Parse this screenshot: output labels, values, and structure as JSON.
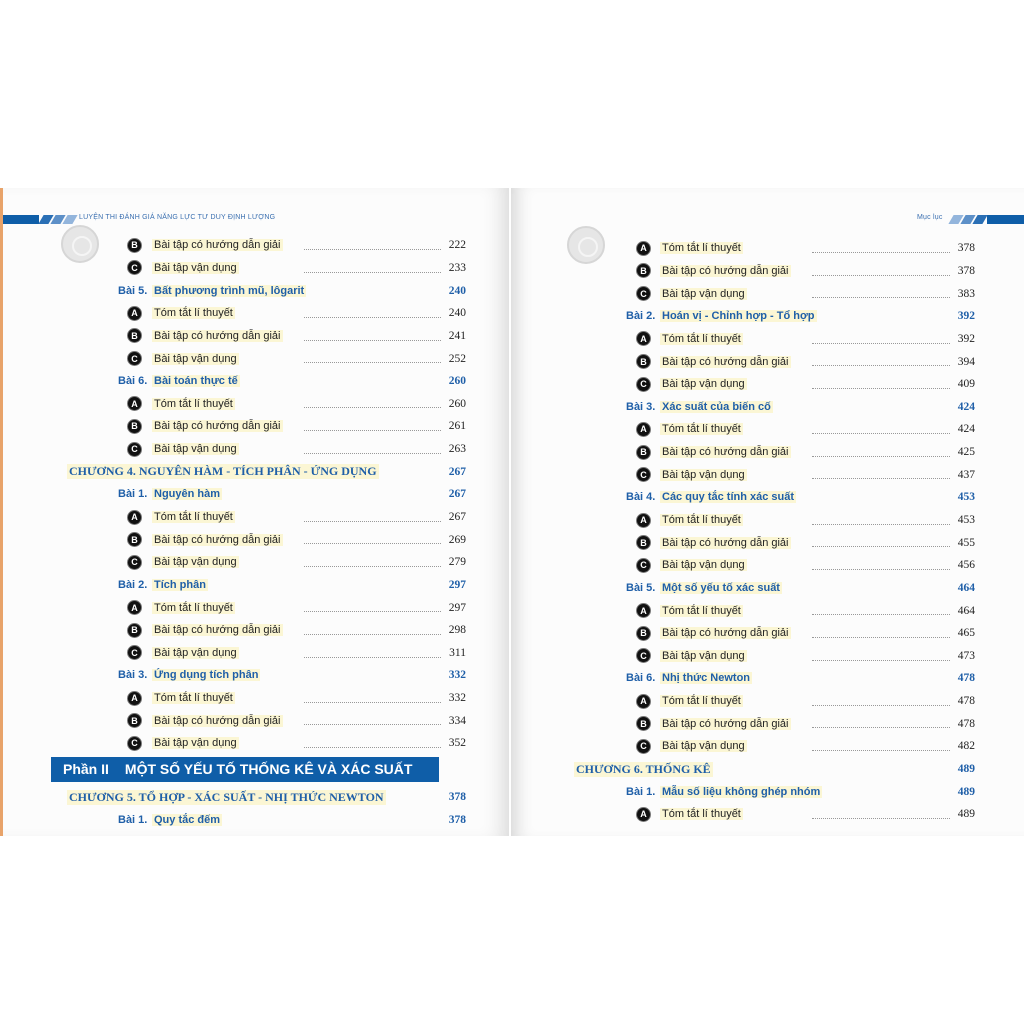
{
  "left_page": {
    "header": "LUYỆN THI ĐÁNH GIÁ NĂNG LỰC TƯ DUY ĐỊNH LƯỢNG",
    "rows": [
      {
        "type": "item",
        "badge": "B",
        "text": "Bài tập có hướng dẫn giải",
        "page": "222"
      },
      {
        "type": "item",
        "badge": "C",
        "text": "Bài tập vận dụng",
        "page": "233"
      },
      {
        "type": "lesson",
        "label": "Bài 5.",
        "text": "Bất phương trình mũ, lôgarit",
        "page": "240"
      },
      {
        "type": "item",
        "badge": "A",
        "text": "Tóm tắt lí thuyết",
        "page": "240"
      },
      {
        "type": "item",
        "badge": "B",
        "text": "Bài tập có hướng dẫn giải",
        "page": "241"
      },
      {
        "type": "item",
        "badge": "C",
        "text": "Bài tập vận dụng",
        "page": "252"
      },
      {
        "type": "lesson",
        "label": "Bài 6.",
        "text": "Bài toán thực tế",
        "page": "260"
      },
      {
        "type": "item",
        "badge": "A",
        "text": "Tóm tắt lí thuyết",
        "page": "260"
      },
      {
        "type": "item",
        "badge": "B",
        "text": "Bài tập có hướng dẫn giải",
        "page": "261"
      },
      {
        "type": "item",
        "badge": "C",
        "text": "Bài tập vận dụng",
        "page": "263"
      },
      {
        "type": "chapter",
        "text": "CHƯƠNG 4.  NGUYÊN HÀM - TÍCH PHÂN - ỨNG DỤNG",
        "page": "267"
      },
      {
        "type": "lesson",
        "label": "Bài 1.",
        "text": "Nguyên hàm",
        "page": "267"
      },
      {
        "type": "item",
        "badge": "A",
        "text": "Tóm tắt lí thuyết",
        "page": "267"
      },
      {
        "type": "item",
        "badge": "B",
        "text": "Bài tập có hướng dẫn giải",
        "page": "269"
      },
      {
        "type": "item",
        "badge": "C",
        "text": "Bài tập vận dụng",
        "page": "279"
      },
      {
        "type": "lesson",
        "label": "Bài 2.",
        "text": "Tích phân",
        "page": "297"
      },
      {
        "type": "item",
        "badge": "A",
        "text": "Tóm tắt lí thuyết",
        "page": "297"
      },
      {
        "type": "item",
        "badge": "B",
        "text": "Bài tập có hướng dẫn giải",
        "page": "298"
      },
      {
        "type": "item",
        "badge": "C",
        "text": "Bài tập vận dụng",
        "page": "311"
      },
      {
        "type": "lesson",
        "label": "Bài 3.",
        "text": "Ứng dụng tích phân",
        "page": "332"
      },
      {
        "type": "item",
        "badge": "A",
        "text": "Tóm tắt lí thuyết",
        "page": "332"
      },
      {
        "type": "item",
        "badge": "B",
        "text": "Bài tập có hướng dẫn giải",
        "page": "334"
      },
      {
        "type": "item",
        "badge": "C",
        "text": "Bài tập vận dụng",
        "page": "352"
      },
      {
        "type": "part",
        "label": "Phần  II",
        "text": "MỘT SỐ YẾU TỐ THỐNG KÊ VÀ XÁC SUẤT"
      },
      {
        "type": "chapter",
        "text": "CHƯƠNG 5.  TỔ HỢP - XÁC SUẤT - NHỊ THỨC NEWTON",
        "page": "378"
      },
      {
        "type": "lesson",
        "label": "Bài 1.",
        "text": "Quy tắc đếm",
        "page": "378"
      }
    ]
  },
  "right_page": {
    "header": "Mục lục",
    "rows": [
      {
        "type": "item",
        "badge": "A",
        "text": "Tóm tắt lí thuyết",
        "page": "378"
      },
      {
        "type": "item",
        "badge": "B",
        "text": "Bài tập có hướng dẫn giải",
        "page": "378"
      },
      {
        "type": "item",
        "badge": "C",
        "text": "Bài tập vận dụng",
        "page": "383"
      },
      {
        "type": "lesson",
        "label": "Bài 2.",
        "text": "Hoán vị - Chỉnh hợp - Tổ hợp",
        "page": "392"
      },
      {
        "type": "item",
        "badge": "A",
        "text": "Tóm tắt lí thuyết",
        "page": "392"
      },
      {
        "type": "item",
        "badge": "B",
        "text": "Bài tập có hướng dẫn giải",
        "page": "394"
      },
      {
        "type": "item",
        "badge": "C",
        "text": "Bài tập vận dụng",
        "page": "409"
      },
      {
        "type": "lesson",
        "label": "Bài 3.",
        "text": "Xác suất của biến cố",
        "page": "424"
      },
      {
        "type": "item",
        "badge": "A",
        "text": "Tóm tắt lí thuyết",
        "page": "424"
      },
      {
        "type": "item",
        "badge": "B",
        "text": "Bài tập có hướng dẫn giải",
        "page": "425"
      },
      {
        "type": "item",
        "badge": "C",
        "text": "Bài tập vận dụng",
        "page": "437"
      },
      {
        "type": "lesson",
        "label": "Bài 4.",
        "text": "Các quy tắc tính xác suất",
        "page": "453"
      },
      {
        "type": "item",
        "badge": "A",
        "text": "Tóm tắt lí thuyết",
        "page": "453"
      },
      {
        "type": "item",
        "badge": "B",
        "text": "Bài tập có hướng dẫn giải",
        "page": "455"
      },
      {
        "type": "item",
        "badge": "C",
        "text": "Bài tập vận dụng",
        "page": "456"
      },
      {
        "type": "lesson",
        "label": "Bài 5.",
        "text": "Một số yếu tố xác suất",
        "page": "464"
      },
      {
        "type": "item",
        "badge": "A",
        "text": "Tóm tắt lí thuyết",
        "page": "464"
      },
      {
        "type": "item",
        "badge": "B",
        "text": "Bài tập có hướng dẫn giải",
        "page": "465"
      },
      {
        "type": "item",
        "badge": "C",
        "text": "Bài tập vận dụng",
        "page": "473"
      },
      {
        "type": "lesson",
        "label": "Bài 6.",
        "text": "Nhị thức Newton",
        "page": "478"
      },
      {
        "type": "item",
        "badge": "A",
        "text": "Tóm tắt lí thuyết",
        "page": "478"
      },
      {
        "type": "item",
        "badge": "B",
        "text": "Bài tập có hướng dẫn giải",
        "page": "478"
      },
      {
        "type": "item",
        "badge": "C",
        "text": "Bài tập vận dụng",
        "page": "482"
      },
      {
        "type": "chapter",
        "text": "CHƯƠNG 6.  THỐNG KÊ",
        "page": "489"
      },
      {
        "type": "lesson",
        "label": "Bài 1.",
        "text": "Mẫu số liệu không ghép nhóm",
        "page": "489"
      },
      {
        "type": "item",
        "badge": "A",
        "text": "Tóm tắt lí thuyết",
        "page": "489"
      }
    ]
  },
  "colors": {
    "accent": "#1f5fa8",
    "part_bar": "#0f5ea8",
    "highlight": "#fbf6d4",
    "page_edge": "#e8a36a"
  }
}
